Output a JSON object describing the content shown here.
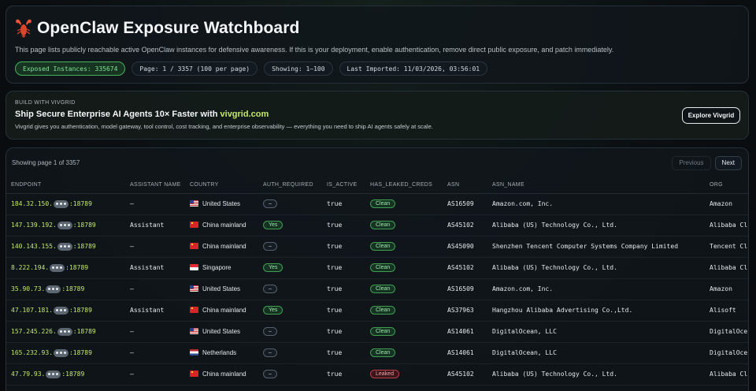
{
  "hero": {
    "title": "OpenClaw Exposure Watchboard",
    "description": "This page lists publicly reachable active OpenClaw instances for defensive awareness. If this is your deployment, enable authentication, remove direct public exposure, and patch immediately.",
    "stats": {
      "exposed": "Exposed Instances: 335674",
      "page": "Page: 1 / 3357 (100 per page)",
      "showing": "Showing: 1–100",
      "imported": "Last Imported: 11/03/2026, 03:56:01"
    }
  },
  "promo": {
    "eyebrow": "BUILD WITH VIVGRID",
    "headline": "Ship Secure Enterprise AI Agents 10× Faster with ",
    "headline_link": "vivgrid.com",
    "body": "Vivgrid gives you authentication, model gateway, tool control, cost tracking, and enterprise observability — everything you need to ship AI agents safely at scale.",
    "button": "Explore Vivgrid"
  },
  "results": {
    "showing": "Showing page 1 of 3357",
    "prev": "Previous",
    "next": "Next",
    "columns": [
      "ENDPOINT",
      "ASSISTANT NAME",
      "COUNTRY",
      "AUTH_REQUIRED",
      "IS_ACTIVE",
      "HAS_LEAKED_CREDS",
      "ASN",
      "ASN_NAME",
      "ORG"
    ],
    "rows": [
      {
        "ep_prefix": "184.32.150.",
        "ep_port": ":18789",
        "assistant": "–",
        "flag": "us",
        "country": "United States",
        "auth": "–",
        "active": "true",
        "leaked": "Clean",
        "asn": "AS16509",
        "asn_name": "Amazon.com, Inc.",
        "org": "Amazon"
      },
      {
        "ep_prefix": "147.139.192.",
        "ep_port": ":18789",
        "assistant": "Assistant",
        "flag": "cn",
        "country": "China mainland",
        "auth": "Yes",
        "active": "true",
        "leaked": "Clean",
        "asn": "AS45102",
        "asn_name": "Alibaba (US) Technology Co., Ltd.",
        "org": "Alibaba Cl"
      },
      {
        "ep_prefix": "140.143.155.",
        "ep_port": ":18789",
        "assistant": "–",
        "flag": "cn",
        "country": "China mainland",
        "auth": "–",
        "active": "true",
        "leaked": "Clean",
        "asn": "AS45090",
        "asn_name": "Shenzhen Tencent Computer Systems Company Limited",
        "org": "Tencent Cl"
      },
      {
        "ep_prefix": "8.222.194.",
        "ep_port": ":18789",
        "assistant": "Assistant",
        "flag": "sg",
        "country": "Singapore",
        "auth": "Yes",
        "active": "true",
        "leaked": "Clean",
        "asn": "AS45102",
        "asn_name": "Alibaba (US) Technology Co., Ltd.",
        "org": "Alibaba Cl"
      },
      {
        "ep_prefix": "35.90.73.",
        "ep_port": ":18789",
        "assistant": "–",
        "flag": "us",
        "country": "United States",
        "auth": "–",
        "active": "true",
        "leaked": "Clean",
        "asn": "AS16509",
        "asn_name": "Amazon.com, Inc.",
        "org": "Amazon"
      },
      {
        "ep_prefix": "47.107.181.",
        "ep_port": ":18789",
        "assistant": "Assistant",
        "flag": "cn",
        "country": "China mainland",
        "auth": "Yes",
        "active": "true",
        "leaked": "Clean",
        "asn": "AS37963",
        "asn_name": "Hangzhou Alibaba Advertising Co.,Ltd.",
        "org": "Alisoft"
      },
      {
        "ep_prefix": "157.245.226.",
        "ep_port": ":18789",
        "assistant": "–",
        "flag": "us",
        "country": "United States",
        "auth": "–",
        "active": "true",
        "leaked": "Clean",
        "asn": "AS14061",
        "asn_name": "DigitalOcean, LLC",
        "org": "DigitalOce"
      },
      {
        "ep_prefix": "165.232.93.",
        "ep_port": ":18789",
        "assistant": "–",
        "flag": "nl",
        "country": "Netherlands",
        "auth": "–",
        "active": "true",
        "leaked": "Clean",
        "asn": "AS14061",
        "asn_name": "DigitalOcean, LLC",
        "org": "DigitalOce"
      },
      {
        "ep_prefix": "47.79.93.",
        "ep_port": ":18789",
        "assistant": "–",
        "flag": "cn",
        "country": "China mainland",
        "auth": "–",
        "active": "true",
        "leaked": "Leaked",
        "asn": "AS45102",
        "asn_name": "Alibaba (US) Technology Co., Ltd.",
        "org": "Alibaba Cl"
      }
    ]
  },
  "colors": {
    "accent_lime": "#c3e868",
    "clean_green": "#3f9e52",
    "leaked_red": "#b94048",
    "background": "#0b0f12"
  }
}
